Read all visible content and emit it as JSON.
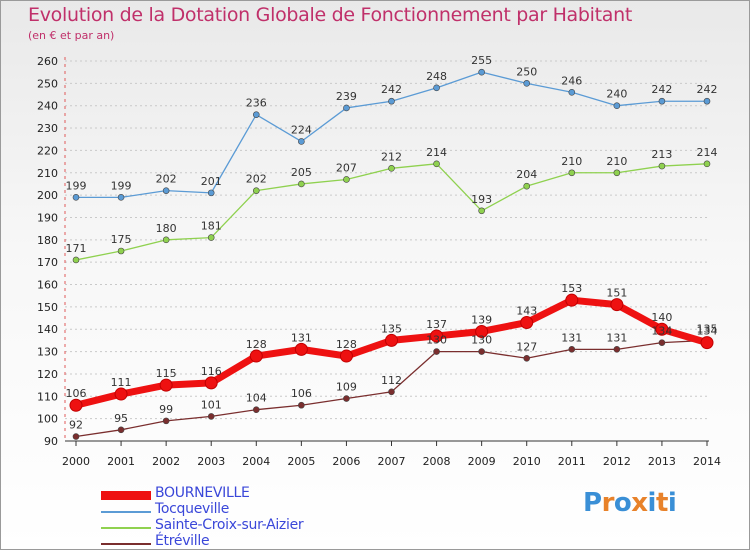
{
  "title": "Evolution de la Dotation Globale de Fonctionnement par Habitant",
  "subtitle": "(en € et par an)",
  "brand": {
    "letters": [
      "P",
      "r",
      "o",
      "x",
      "i",
      "t",
      "i"
    ],
    "colors": [
      "#3a8fd6",
      "#e8822a",
      "#3a8fd6",
      "#e8822a",
      "#3a8fd6",
      "#e8822a",
      "#3a8fd6"
    ]
  },
  "chart_data": {
    "type": "line",
    "x": [
      "2000",
      "2001",
      "2002",
      "2003",
      "2004",
      "2005",
      "2006",
      "2007",
      "2008",
      "2009",
      "2010",
      "2011",
      "2012",
      "2013",
      "2014"
    ],
    "ylim": [
      90,
      260
    ],
    "yticks": [
      "90",
      "100",
      "110",
      "120",
      "130",
      "140",
      "150",
      "160",
      "170",
      "180",
      "190",
      "200",
      "210",
      "220",
      "230",
      "240",
      "250",
      "260"
    ],
    "grid": "horizontal dotted",
    "legend_placement": "bottom-left",
    "series": [
      {
        "name": "Tocqueville",
        "color": "#5b9bd5",
        "values": [
          199,
          199,
          202,
          201,
          236,
          224,
          239,
          242,
          248,
          255,
          250,
          246,
          240,
          242,
          242
        ],
        "labels": [
          "199",
          "199",
          "202",
          "201",
          "236",
          "224",
          "239",
          "242",
          "248",
          "255",
          "250",
          "246",
          "240",
          "242",
          "242"
        ]
      },
      {
        "name": "Sainte-Croix-sur-Aizier",
        "color": "#8fd14f",
        "values": [
          171,
          175,
          180,
          181,
          202,
          205,
          207,
          212,
          214,
          193,
          204,
          210,
          210,
          213,
          214
        ],
        "labels": [
          "171",
          "175",
          "180",
          "181",
          "202",
          "205",
          "207",
          "212",
          "214",
          "193",
          "204",
          "210",
          "210",
          "213",
          "214"
        ]
      },
      {
        "name": "Étréville",
        "color": "#7a2e2e",
        "values": [
          92,
          95,
          99,
          101,
          104,
          106,
          109,
          112,
          130,
          130,
          127,
          131,
          131,
          134,
          135
        ],
        "labels": [
          "92",
          "95",
          "99",
          "101",
          "104",
          "106",
          "109",
          "112",
          "130",
          "130",
          "127",
          "131",
          "131",
          "134",
          "135"
        ]
      },
      {
        "name": "BOURNEVILLE",
        "color": "#ee1111",
        "values": [
          106,
          111,
          115,
          116,
          128,
          131,
          128,
          135,
          137,
          139,
          143,
          153,
          151,
          140,
          134
        ],
        "labels": [
          "106",
          "111",
          "115",
          "116",
          "128",
          "131",
          "128",
          "135",
          "137",
          "139",
          "143",
          "153",
          "151",
          "140",
          "134"
        ]
      }
    ],
    "legend": [
      "BOURNEVILLE",
      "Tocqueville",
      "Sainte-Croix-sur-Aizier",
      "Étréville"
    ]
  }
}
